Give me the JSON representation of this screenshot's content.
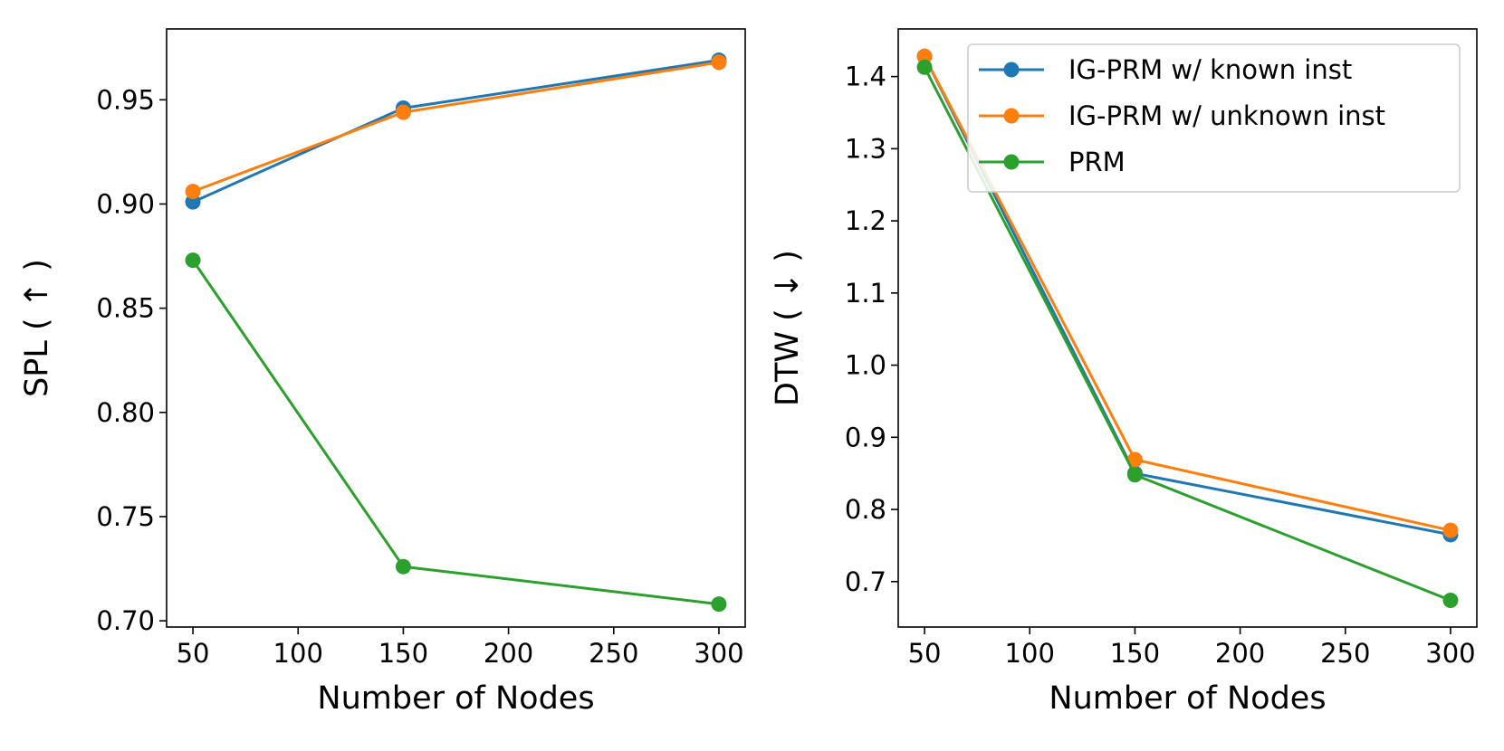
{
  "chart_data": [
    {
      "type": "line",
      "title": "",
      "xlabel": "Number of Nodes",
      "ylabel": "SPL ( ↑ )",
      "xlim": [
        37.5,
        312.5
      ],
      "ylim": [
        0.697,
        0.984
      ],
      "xticks": [
        50,
        100,
        150,
        200,
        250,
        300
      ],
      "yticks": [
        0.7,
        0.75,
        0.8,
        0.85,
        0.9,
        0.95
      ],
      "ytick_decimals": 2,
      "grid": false,
      "x": [
        50,
        150,
        300
      ],
      "series": [
        {
          "name": "IG-PRM w/ known inst",
          "color": "#1f77b4",
          "values": [
            0.901,
            0.946,
            0.969
          ]
        },
        {
          "name": "IG-PRM w/ unknown inst",
          "color": "#ff7f0e",
          "values": [
            0.906,
            0.944,
            0.968
          ]
        },
        {
          "name": "PRM",
          "color": "#2ca02c",
          "values": [
            0.873,
            0.726,
            0.708
          ]
        }
      ]
    },
    {
      "type": "line",
      "title": "",
      "xlabel": "Number of Nodes",
      "ylabel": "DTW ( ↓ )",
      "xlim": [
        37.5,
        312.5
      ],
      "ylim": [
        0.637,
        1.466
      ],
      "xticks": [
        50,
        100,
        150,
        200,
        250,
        300
      ],
      "yticks": [
        0.7,
        0.8,
        0.9,
        1.0,
        1.1,
        1.2,
        1.3,
        1.4
      ],
      "ytick_decimals": 1,
      "grid": false,
      "legend": "top-right",
      "x": [
        50,
        150,
        300
      ],
      "series": [
        {
          "name": "IG-PRM w/ known inst",
          "color": "#1f77b4",
          "values": [
            1.428,
            0.85,
            0.765
          ]
        },
        {
          "name": "IG-PRM w/ unknown inst",
          "color": "#ff7f0e",
          "values": [
            1.428,
            0.869,
            0.771
          ]
        },
        {
          "name": "PRM",
          "color": "#2ca02c",
          "values": [
            1.413,
            0.848,
            0.674
          ]
        }
      ]
    }
  ]
}
